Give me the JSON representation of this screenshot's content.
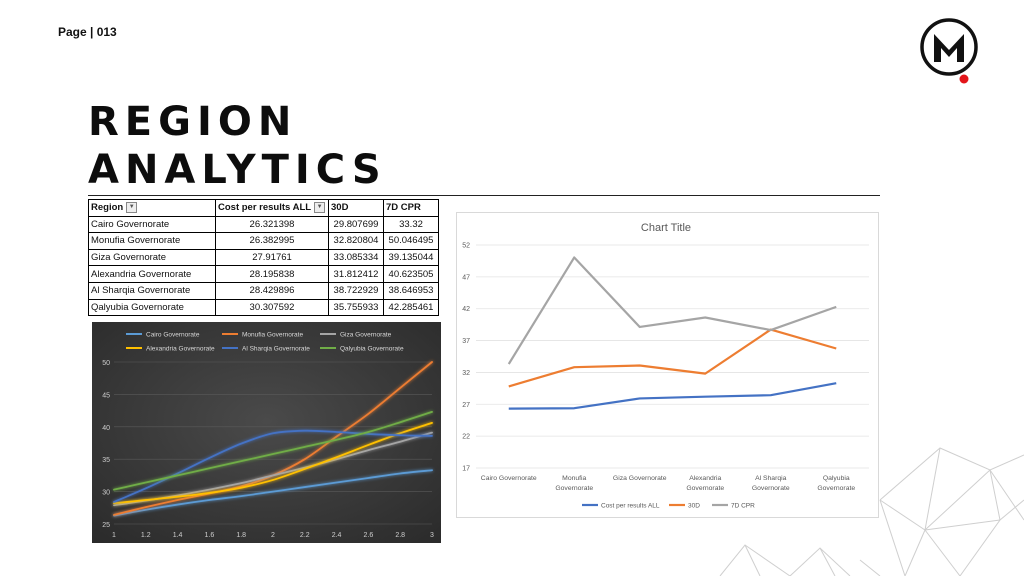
{
  "page": {
    "label": "Page | 013",
    "title_line1": "REGION",
    "title_line2": "ANALYTICS"
  },
  "table": {
    "headers": [
      "Region",
      "Cost per results ALL",
      "30D",
      "7D CPR"
    ],
    "rows": [
      [
        "Cairo Governorate",
        "26.321398",
        "29.807699",
        "33.32"
      ],
      [
        "Monufia Governorate",
        "26.382995",
        "32.820804",
        "50.046495"
      ],
      [
        "Giza Governorate",
        "27.91761",
        "33.085334",
        "39.135044"
      ],
      [
        "Alexandria Governorate",
        "28.195838",
        "31.812412",
        "40.623505"
      ],
      [
        "Al Sharqia Governorate",
        "28.429896",
        "38.722929",
        "38.646953"
      ],
      [
        "Qalyubia Governorate",
        "30.307592",
        "35.755933",
        "42.285461"
      ]
    ]
  },
  "chart_data": [
    {
      "type": "line",
      "title": "",
      "x_ticks": [
        "1",
        "1.2",
        "1.4",
        "1.6",
        "1.8",
        "2",
        "2.2",
        "2.4",
        "2.6",
        "2.8",
        "3"
      ],
      "xlim": [
        1,
        3
      ],
      "ylim": [
        25,
        50
      ],
      "y_ticks": [
        25,
        30,
        35,
        40,
        45,
        50
      ],
      "legend_position": "top",
      "grid": true,
      "x": [
        1,
        1.2,
        1.4,
        1.6,
        1.8,
        2,
        2.2,
        2.4,
        2.6,
        2.8,
        3
      ],
      "series": [
        {
          "name": "Cairo Governorate",
          "color": "#5b9bd5",
          "values": [
            26.3,
            27.2,
            28.0,
            28.7,
            29.3,
            30.0,
            30.7,
            31.4,
            32.1,
            32.8,
            33.3
          ]
        },
        {
          "name": "Monufia Governorate",
          "color": "#ed7d31",
          "values": [
            26.4,
            27.6,
            28.7,
            29.7,
            30.8,
            32.5,
            35.0,
            38.5,
            42.0,
            46.0,
            50.0
          ]
        },
        {
          "name": "Giza Governorate",
          "color": "#a5a5a5",
          "values": [
            27.9,
            28.6,
            29.4,
            30.3,
            31.3,
            32.5,
            33.7,
            35.0,
            36.4,
            37.7,
            39.1
          ]
        },
        {
          "name": "Alexandria Governorate",
          "color": "#ffc000",
          "values": [
            28.2,
            28.7,
            29.2,
            29.8,
            30.6,
            31.8,
            33.5,
            35.3,
            37.2,
            39.0,
            40.6
          ]
        },
        {
          "name": "Al Sharqia Governorate",
          "color": "#4472c4",
          "values": [
            28.4,
            30.5,
            32.8,
            35.2,
            37.4,
            39.0,
            39.4,
            39.2,
            38.9,
            38.7,
            38.6
          ]
        },
        {
          "name": "Qalyubia Governorate",
          "color": "#70ad47",
          "values": [
            30.3,
            31.4,
            32.5,
            33.6,
            34.7,
            35.8,
            36.9,
            38.0,
            39.2,
            40.7,
            42.3
          ]
        }
      ]
    },
    {
      "type": "line",
      "title": "Chart Title",
      "categories": [
        [
          "Cairo Governorate"
        ],
        [
          "Monufia",
          "Governorate"
        ],
        [
          "Giza Governorate"
        ],
        [
          "Alexandria",
          "Governorate"
        ],
        [
          "Al Sharqia",
          "Governorate"
        ],
        [
          "Qalyubia",
          "Governorate"
        ]
      ],
      "ylim": [
        17,
        52
      ],
      "y_ticks": [
        17,
        22,
        27,
        32,
        37,
        42,
        47,
        52
      ],
      "legend_position": "bottom",
      "grid": true,
      "series": [
        {
          "name": "Cost per results ALL",
          "color": "#4472c4",
          "values": [
            26.321398,
            26.382995,
            27.91761,
            28.195838,
            28.429896,
            30.307592
          ]
        },
        {
          "name": "30D",
          "color": "#ed7d31",
          "values": [
            29.807699,
            32.820804,
            33.085334,
            31.812412,
            38.722929,
            35.755933
          ]
        },
        {
          "name": "7D CPR",
          "color": "#a5a5a5",
          "values": [
            33.32,
            50.046495,
            39.135044,
            40.623505,
            38.646953,
            42.285461
          ]
        }
      ]
    }
  ]
}
